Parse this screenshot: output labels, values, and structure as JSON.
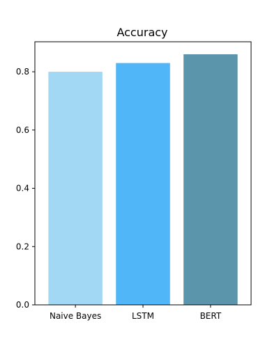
{
  "chart_data": {
    "type": "bar",
    "title": "Accuracy",
    "xlabel": "",
    "ylabel": "",
    "categories": [
      "Naive Bayes",
      "LSTM",
      "BERT"
    ],
    "values": [
      0.8,
      0.83,
      0.86
    ],
    "colors": [
      "#a3d8f4",
      "#51b6f7",
      "#5a95ab"
    ],
    "ylim": [
      0,
      0.903
    ],
    "yticks": [
      0.0,
      0.2,
      0.4,
      0.6,
      0.8
    ],
    "ytick_labels": [
      "0.0",
      "0.2",
      "0.4",
      "0.6",
      "0.8"
    ],
    "grid": false,
    "legend": "none"
  }
}
